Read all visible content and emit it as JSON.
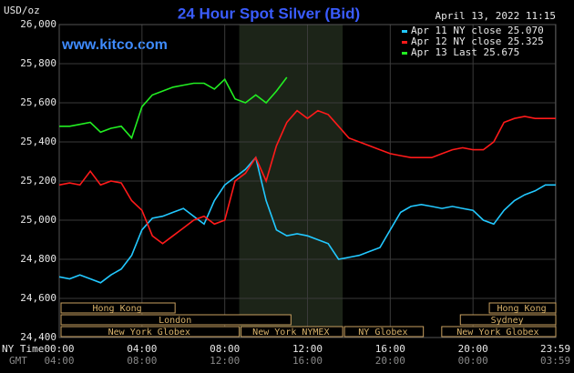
{
  "chart_data": {
    "type": "line",
    "title": "24 Hour Spot Silver (Bid)",
    "unit_label": "USD/oz",
    "timestamp": "April 13, 2022 11:15",
    "watermark": "www.kitco.com",
    "x_row_labels": [
      "NY Time",
      "GMT"
    ],
    "x": [
      0,
      0.5,
      1,
      1.5,
      2,
      2.5,
      3,
      3.5,
      4,
      4.5,
      5,
      5.5,
      6,
      6.5,
      7,
      7.5,
      8,
      8.5,
      9,
      9.5,
      10,
      10.5,
      11,
      11.5,
      12,
      12.5,
      13,
      13.5,
      14,
      14.5,
      15,
      15.5,
      16,
      16.5,
      17,
      17.5,
      18,
      18.5,
      19,
      19.5,
      20,
      20.5,
      21,
      21.5,
      22,
      22.5,
      23,
      23.5,
      24
    ],
    "xlim": [
      0,
      24
    ],
    "xticks": [
      {
        "value": 0,
        "label": "00:00"
      },
      {
        "value": 4,
        "label": "04:00"
      },
      {
        "value": 8,
        "label": "08:00"
      },
      {
        "value": 12,
        "label": "12:00"
      },
      {
        "value": 16,
        "label": "16:00"
      },
      {
        "value": 20,
        "label": "20:00"
      },
      {
        "value": 23.983,
        "label": "23:59"
      }
    ],
    "gmt_labels": [
      "04:00",
      "08:00",
      "12:00",
      "16:00",
      "20:00",
      "00:00",
      "03:59"
    ],
    "ylim": [
      24.4,
      26
    ],
    "yticks": [
      {
        "value": 24.4,
        "label": "24,400"
      },
      {
        "value": 24.6,
        "label": "24,600"
      },
      {
        "value": 24.8,
        "label": "24,800"
      },
      {
        "value": 25,
        "label": "25,000"
      },
      {
        "value": 25.2,
        "label": "25,200"
      },
      {
        "value": 25.4,
        "label": "25,400"
      },
      {
        "value": 25.6,
        "label": "25,600"
      },
      {
        "value": 25.8,
        "label": "25,800"
      },
      {
        "value": 26,
        "label": "26,000"
      }
    ],
    "grid": true,
    "legend": "top-right",
    "series": [
      {
        "name": "Apr 11 NY close 25.070",
        "color": "#22c8ff",
        "values": [
          24.71,
          24.7,
          24.72,
          24.7,
          24.68,
          24.72,
          24.75,
          24.82,
          24.95,
          25.01,
          25.02,
          25.04,
          25.06,
          25.02,
          24.98,
          25.1,
          25.18,
          25.22,
          25.26,
          25.32,
          25.1,
          24.95,
          24.92,
          24.93,
          24.92,
          24.9,
          24.88,
          24.8,
          24.81,
          24.82,
          24.84,
          24.86,
          24.95,
          25.04,
          25.07,
          25.08,
          25.07,
          25.06,
          25.07,
          25.06,
          25.05,
          25.0,
          24.98,
          25.05,
          25.1,
          25.13,
          25.15,
          25.18,
          25.18
        ]
      },
      {
        "name": "Apr 12 NY close 25.325",
        "color": "#ff1a1a",
        "values": [
          25.18,
          25.19,
          25.18,
          25.25,
          25.18,
          25.2,
          25.19,
          25.1,
          25.05,
          24.92,
          24.88,
          24.92,
          24.96,
          25.0,
          25.02,
          24.98,
          25.0,
          25.2,
          25.24,
          25.32,
          25.2,
          25.38,
          25.5,
          25.56,
          25.52,
          25.56,
          25.54,
          25.48,
          25.42,
          25.4,
          25.38,
          25.36,
          25.34,
          25.33,
          25.32,
          25.32,
          25.32,
          25.34,
          25.36,
          25.37,
          25.36,
          25.36,
          25.4,
          25.5,
          25.52,
          25.53,
          25.52,
          25.52,
          25.52
        ]
      },
      {
        "name": "Apr 13 Last 25.675",
        "color": "#22ee22",
        "values": [
          25.48,
          25.48,
          25.49,
          25.5,
          25.45,
          25.47,
          25.48,
          25.42,
          25.58,
          25.64,
          25.66,
          25.68,
          25.69,
          25.7,
          25.7,
          25.67,
          25.72,
          25.62,
          25.6,
          25.64,
          25.6,
          25.66,
          25.73,
          null,
          null,
          null,
          null,
          null,
          null,
          null,
          null,
          null,
          null,
          null,
          null,
          null,
          null,
          null,
          null,
          null,
          null,
          null,
          null,
          null,
          null,
          null,
          null,
          null,
          null
        ]
      }
    ],
    "session_rows": [
      [
        {
          "name": "Hong Kong",
          "start": 0,
          "end": 5.6
        },
        {
          "name": "Hong Kong",
          "start": 20.7,
          "end": 24
        }
      ],
      [
        {
          "name": "London",
          "start": 0,
          "end": 11.2
        },
        {
          "name": "Sydney",
          "start": 19.3,
          "end": 24
        }
      ],
      [
        {
          "name": "New York Globex",
          "start": 0,
          "end": 8.7
        },
        {
          "name": "New York NYMEX",
          "start": 8.7,
          "end": 13.7
        },
        {
          "name": "NY Globex",
          "start": 13.7,
          "end": 17.6
        },
        {
          "name": "New York Globex",
          "start": 18.4,
          "end": 24
        }
      ]
    ]
  }
}
